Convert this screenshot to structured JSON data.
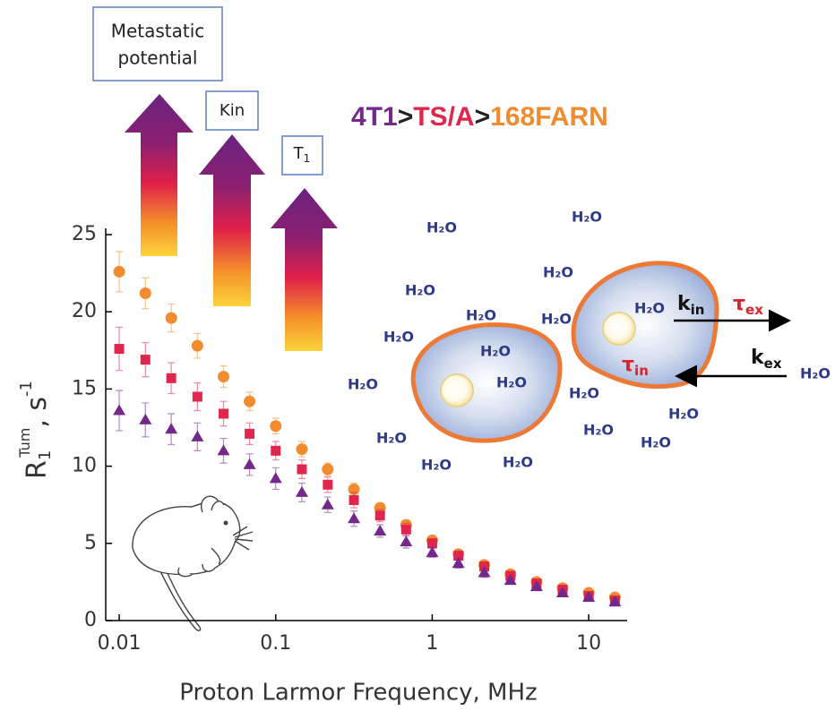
{
  "chart_data": {
    "type": "scatter",
    "xlabel": "Proton Larmor Frequency, MHz",
    "ylabel": {
      "main": "R",
      "sub": "1",
      "sup": "Tum",
      "rest": ", s",
      "rest_sup": "-1"
    },
    "log_x": true,
    "xlim": [
      0.0082,
      17.6
    ],
    "xticks": [
      0.01,
      0.1,
      1,
      10
    ],
    "ylim": [
      0,
      25
    ],
    "yticks": [
      0,
      5,
      10,
      15,
      20,
      25
    ],
    "x": [
      0.01,
      0.0147,
      0.0215,
      0.0316,
      0.0464,
      0.0681,
      0.1,
      0.147,
      0.215,
      0.316,
      0.464,
      0.681,
      1,
      1.47,
      2.15,
      3.16,
      4.64,
      6.81,
      10,
      14.7
    ],
    "series": [
      {
        "color": "#f08c2e",
        "marker": "circle",
        "values": [
          22.6,
          21.2,
          19.6,
          17.8,
          15.8,
          14.2,
          12.6,
          11.1,
          9.8,
          8.5,
          7.3,
          6.2,
          5.2,
          4.3,
          3.6,
          3.0,
          2.5,
          2.1,
          1.8,
          1.5
        ],
        "errors": [
          1.3,
          1.0,
          0.9,
          0.8,
          0.7,
          0.6,
          0.5,
          0.5,
          0.4,
          0.4,
          0.3,
          0.3,
          0.3,
          0.3,
          0.2,
          0.2,
          0.2,
          0.2,
          0.2,
          0.2
        ]
      },
      {
        "color": "#e0264c",
        "marker": "square",
        "values": [
          17.6,
          16.9,
          15.7,
          14.5,
          13.4,
          12.1,
          11.0,
          9.8,
          8.8,
          7.8,
          6.8,
          5.9,
          5.0,
          4.2,
          3.5,
          2.9,
          2.4,
          2.0,
          1.6,
          1.3
        ],
        "errors": [
          1.4,
          1.1,
          1.0,
          0.9,
          0.8,
          0.7,
          0.6,
          0.6,
          0.5,
          0.5,
          0.4,
          0.4,
          0.3,
          0.3,
          0.3,
          0.2,
          0.2,
          0.2,
          0.2,
          0.2
        ]
      },
      {
        "color": "#74288a",
        "marker": "triangle",
        "values": [
          13.6,
          13.0,
          12.4,
          11.9,
          11.0,
          10.1,
          9.2,
          8.3,
          7.5,
          6.6,
          5.8,
          5.1,
          4.4,
          3.7,
          3.1,
          2.6,
          2.2,
          1.8,
          1.5,
          1.2
        ],
        "errors": [
          1.3,
          1.1,
          1.0,
          0.9,
          0.8,
          0.7,
          0.7,
          0.6,
          0.5,
          0.5,
          0.4,
          0.4,
          0.3,
          0.3,
          0.3,
          0.2,
          0.2,
          0.2,
          0.2,
          0.2
        ]
      }
    ]
  },
  "diagram": {
    "header": [
      {
        "text": "4T1",
        "color": "#74288a"
      },
      {
        "text": ">",
        "color": "#222222"
      },
      {
        "text": "TS/A",
        "color": "#e0264c"
      },
      {
        "text": ">",
        "color": "#222222"
      },
      {
        "text": "168FARN",
        "color": "#f08c2e"
      }
    ],
    "metastatic": [
      "Metastatic",
      "potential"
    ],
    "kin": "Kin",
    "t1": {
      "main": "T",
      "sub": "1"
    },
    "water": [
      "H₂O",
      "H₂O",
      "H₂O",
      "H₂O",
      "H₂O",
      "H₂O",
      "H₂O",
      "H₂O",
      "H₂O",
      "H₂O",
      "H₂O",
      "H₂O",
      "H₂O",
      "H₂O",
      "H₂O",
      "H₂O",
      "H₂O",
      "H₂O",
      "H₂O"
    ],
    "k_in": {
      "main": "k",
      "sub": "in"
    },
    "k_ex": {
      "main": "k",
      "sub": "ex"
    },
    "tau_ex": {
      "main": "τ",
      "sub": "ex"
    },
    "tau_in": {
      "main": "τ",
      "sub": "in"
    }
  }
}
